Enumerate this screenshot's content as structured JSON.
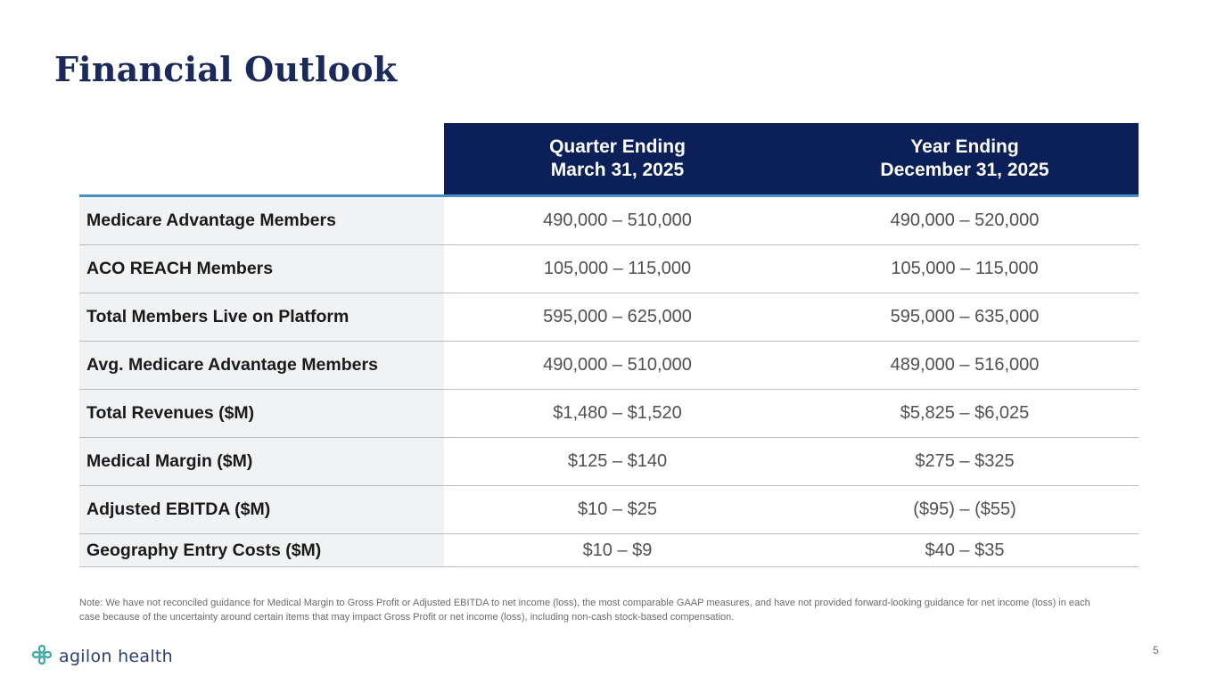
{
  "slide": {
    "title": "Financial Outlook",
    "page_number": "5"
  },
  "table": {
    "headers": [
      {
        "line1": "Quarter Ending",
        "line2": "March 31, 2025"
      },
      {
        "line1": "Year Ending",
        "line2": "December 31, 2025"
      }
    ],
    "rows": [
      {
        "label": "Medicare Advantage Members",
        "q1": "490,000 – 510,000",
        "fy": "490,000 – 520,000"
      },
      {
        "label": "ACO REACH Members",
        "q1": "105,000 – 115,000",
        "fy": "105,000 – 115,000"
      },
      {
        "label": "Total Members Live on Platform",
        "q1": "595,000 – 625,000",
        "fy": "595,000 – 635,000"
      },
      {
        "label": "Avg. Medicare Advantage Members",
        "q1": "490,000 – 510,000",
        "fy": "489,000 – 516,000"
      },
      {
        "label": "Total Revenues ($M)",
        "q1": "$1,480 – $1,520",
        "fy": "$5,825 – $6,025"
      },
      {
        "label": "Medical Margin ($M)",
        "q1": "$125 – $140",
        "fy": "$275 – $325"
      },
      {
        "label": "Adjusted EBITDA ($M)",
        "q1": "$10 – $25",
        "fy": "($95) – ($55)"
      },
      {
        "label": "Geography Entry Costs ($M)",
        "q1": "$10 – $9",
        "fy": "$40 – $35"
      }
    ]
  },
  "note": "Note: We have not reconciled guidance for Medical Margin to Gross Profit or Adjusted EBITDA to net income (loss), the most comparable GAAP measures, and have not provided forward-looking guidance for net income (loss) in each case because of the uncertainty around certain items that may impact Gross Profit or net income (loss), including non-cash stock-based compensation.",
  "logo": {
    "icon": "agilon-cross-icon",
    "text": "agilon health",
    "color": "#3aa99f"
  },
  "colors": {
    "header_bg": "#0b2059",
    "title": "#1b2a5a",
    "accent_rule": "#4a90c8"
  }
}
